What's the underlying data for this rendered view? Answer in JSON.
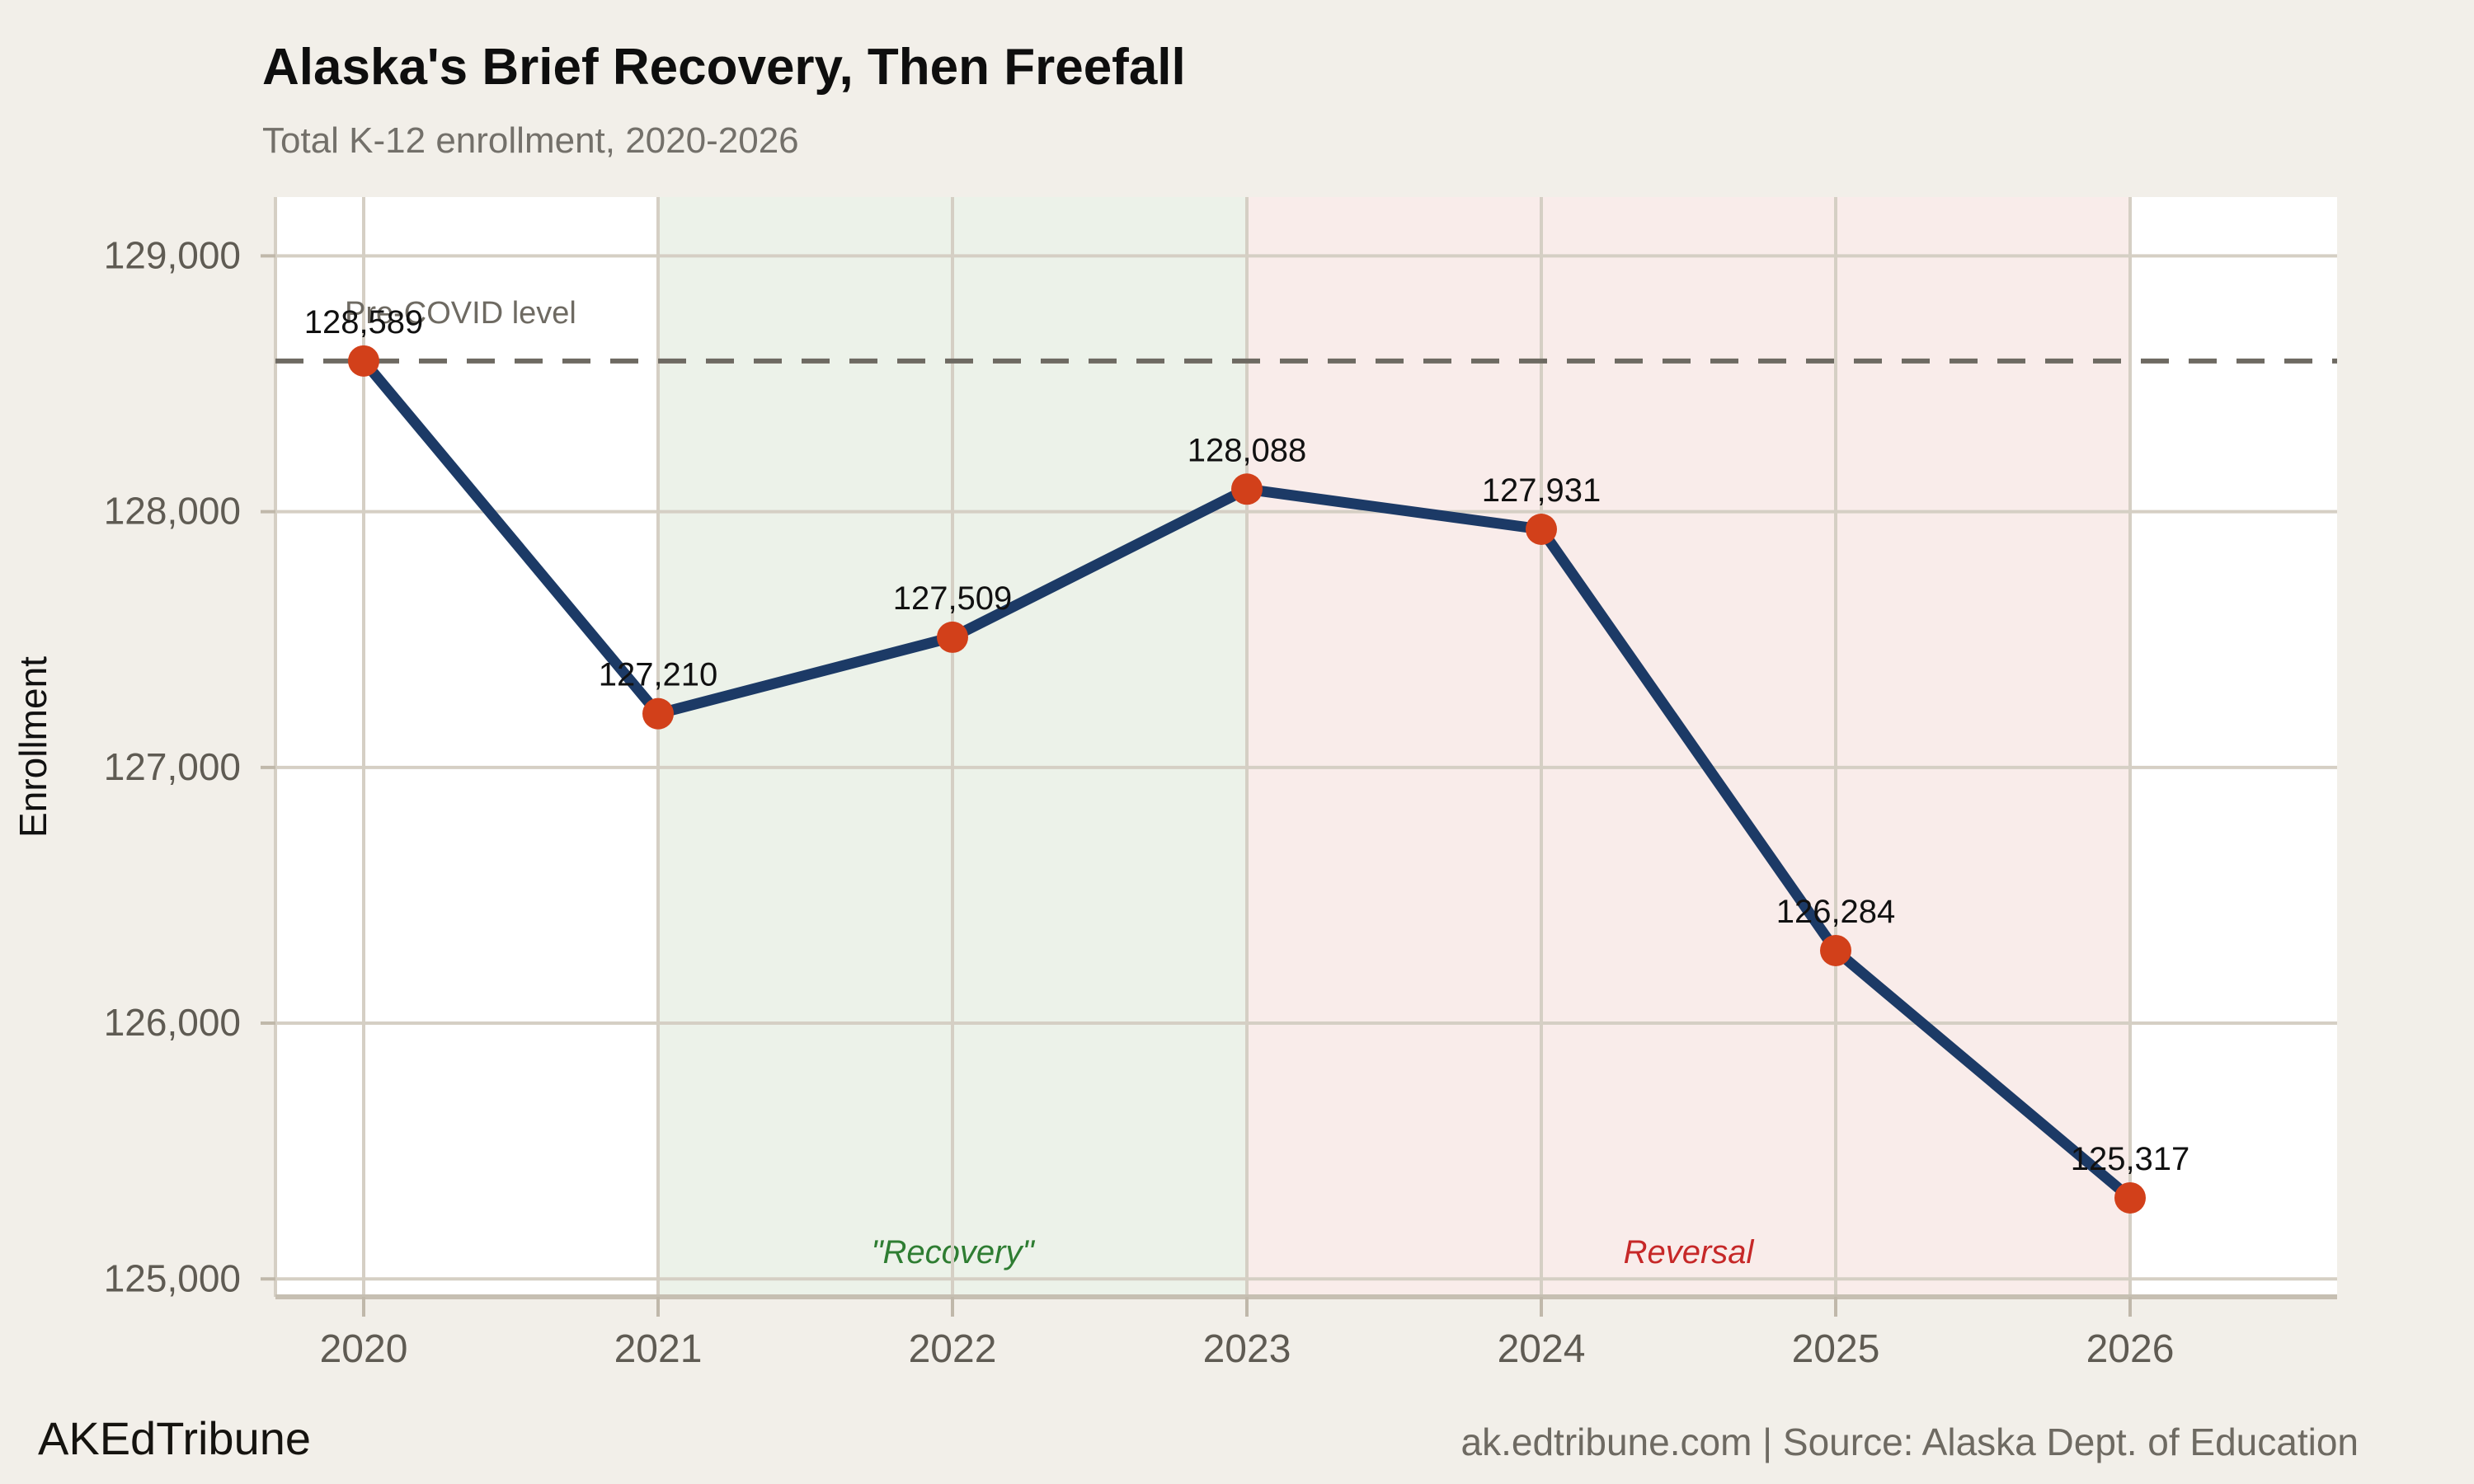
{
  "header": {
    "title": "Alaska's Brief Recovery, Then Freefall",
    "subtitle": "Total K-12 enrollment, 2020-2026"
  },
  "footer": {
    "brand": "AKEdTribune",
    "source": "ak.edtribune.com | Source: Alaska Dept. of Education"
  },
  "chart_data": {
    "type": "line",
    "title": "Alaska's Brief Recovery, Then Freefall",
    "subtitle": "Total K-12 enrollment, 2020-2026",
    "x": [
      2020,
      2021,
      2022,
      2023,
      2024,
      2025,
      2026
    ],
    "values": [
      128589,
      127210,
      127509,
      128088,
      127931,
      126284,
      125317
    ],
    "point_labels": [
      "128,589",
      "127,210",
      "127,509",
      "128,088",
      "127,931",
      "126,284",
      "125,317"
    ],
    "xtick_labels": [
      "2020",
      "2021",
      "2022",
      "2023",
      "2024",
      "2025",
      "2026"
    ],
    "yticks": [
      125000,
      126000,
      127000,
      128000,
      129000
    ],
    "ytick_labels": [
      "125,000",
      "126,000",
      "127,000",
      "128,000",
      "129,000"
    ],
    "ylim": [
      124930,
      129230
    ],
    "xlabel": "",
    "ylabel": "Enrollment",
    "grid": true,
    "legend": "none",
    "reference_line": {
      "value": 128589,
      "label": "Pre-COVID level",
      "style": "dashed"
    },
    "bands": [
      {
        "from": 2021,
        "to": 2023,
        "label": "\"Recovery\"",
        "color": "#ecf2e9",
        "label_color": "#2e7d32"
      },
      {
        "from": 2023,
        "to": 2026,
        "label": "Reversal",
        "color": "#f9ecea",
        "label_color": "#c62828"
      }
    ],
    "colors": {
      "line": "#1c3a66",
      "marker": "#d2401a",
      "grid": "#d5cfc4",
      "axis": "#c6bfb2",
      "tick": "#c0b8aa",
      "reference": "#6e6a62",
      "plot_bg": "#ffffff",
      "page_bg": "#f2efe9",
      "tick_text": "#5f5b53",
      "label_text": "#111111"
    }
  }
}
